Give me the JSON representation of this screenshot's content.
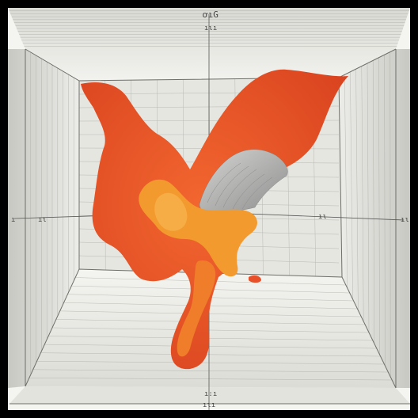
{
  "labels": {
    "top_primary": "ơıG",
    "top_secondary": "ıɩı",
    "left_mid": "ıɩ",
    "left_edge": "ı",
    "right_mid": "ıɩ",
    "right_edge": "ıɩ",
    "bottom_primary": "ı:ı",
    "bottom_secondary": "ıɩı"
  },
  "colors": {
    "frame": "#000000",
    "wall_light": "#eeeeea",
    "wall_shade": "#c9c9c4",
    "fluid_red": "#e8502a",
    "fluid_orange": "#f39a2e",
    "core_gray": "#a9a9a9"
  }
}
